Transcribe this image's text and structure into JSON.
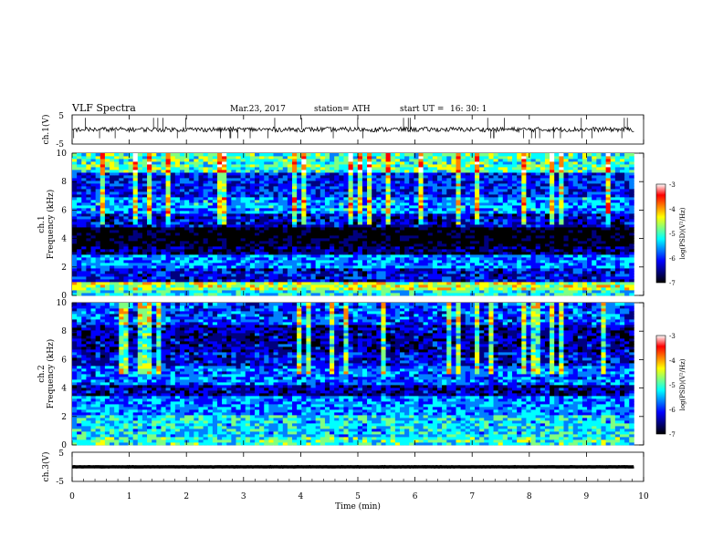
{
  "header": {
    "title": "VLF  Spectra",
    "date": "Mar.23, 2017",
    "station": "station= ATH",
    "start_ut_label": "start  UT  =",
    "start_ut_value": "16: 30: 1"
  },
  "chart_data": [
    {
      "type": "line",
      "panel": "ch1-waveform",
      "ylabel": "ch.1(V)",
      "yticks": [
        "5",
        "-5"
      ],
      "ylim": [
        -5,
        5
      ],
      "xlim": [
        0,
        10
      ],
      "baseline": 0,
      "color": "#000000"
    },
    {
      "type": "heatmap",
      "panel": "ch1-spectrogram",
      "ylabel_line1": "ch.1",
      "ylabel_line2": "Frequency  (kHz)",
      "yticks": [
        "0",
        "2",
        "4",
        "6",
        "8",
        "10"
      ],
      "ylim": [
        0,
        10
      ],
      "xlim": [
        0,
        9.83
      ],
      "colorbar": {
        "label": "log(PSD)(V²/Hz)",
        "ticks": [
          "-3",
          "-4",
          "-5",
          "-6",
          "-7"
        ],
        "range": [
          -7,
          -3
        ]
      },
      "bands_khz_mean_log_psd": [
        {
          "from": 0,
          "to": 0.4,
          "v": -5.2
        },
        {
          "from": 0.4,
          "to": 1,
          "v": -4.6
        },
        {
          "from": 1,
          "to": 2,
          "v": -6.1
        },
        {
          "from": 2,
          "to": 2.8,
          "v": -5.6
        },
        {
          "from": 2.8,
          "to": 3.5,
          "v": -6.5
        },
        {
          "from": 3.5,
          "to": 4.8,
          "v": -6.9
        },
        {
          "from": 4.8,
          "to": 5.8,
          "v": -6.2
        },
        {
          "from": 5.8,
          "to": 7,
          "v": -5.5
        },
        {
          "from": 7,
          "to": 8.7,
          "v": -6.0
        },
        {
          "from": 8.7,
          "to": 10,
          "v": -5.0
        }
      ]
    },
    {
      "type": "heatmap",
      "panel": "ch2-spectrogram",
      "ylabel_line1": "ch.2",
      "ylabel_line2": "Frequency  (kHz)",
      "yticks": [
        "0",
        "2",
        "4",
        "6",
        "8",
        "10"
      ],
      "ylim": [
        0,
        10
      ],
      "xlim": [
        0,
        9.83
      ],
      "colorbar": {
        "label": "log(PSD)(V²/Hz)",
        "ticks": [
          "-3",
          "-4",
          "-5",
          "-6",
          "-7"
        ],
        "range": [
          -7,
          -3
        ]
      },
      "bands_khz_mean_log_psd": [
        {
          "from": 0,
          "to": 0.5,
          "v": -5.0
        },
        {
          "from": 0.5,
          "to": 2.2,
          "v": -5.3
        },
        {
          "from": 2.2,
          "to": 3.5,
          "v": -5.6
        },
        {
          "from": 3.5,
          "to": 4.3,
          "v": -6.3
        },
        {
          "from": 4.3,
          "to": 5.5,
          "v": -5.7
        },
        {
          "from": 5.5,
          "to": 6.5,
          "v": -6.1
        },
        {
          "from": 6.5,
          "to": 8.5,
          "v": -6.3
        },
        {
          "from": 8.5,
          "to": 10,
          "v": -5.8
        }
      ]
    },
    {
      "type": "line",
      "panel": "ch3-waveform",
      "ylabel": "ch.3(V)",
      "yticks": [
        "5",
        "-5"
      ],
      "ylim": [
        -5,
        5
      ],
      "xlim": [
        0,
        10
      ],
      "baseline": 0,
      "color": "#000000"
    }
  ],
  "xaxis": {
    "label": "Time  (min)",
    "ticks": [
      "0",
      "1",
      "2",
      "3",
      "4",
      "5",
      "6",
      "7",
      "8",
      "9",
      "10"
    ],
    "range": [
      0,
      10
    ]
  },
  "colormap": [
    "#000000",
    "#00007f",
    "#0000ff",
    "#0080ff",
    "#00ffff",
    "#80ff80",
    "#ffff00",
    "#ff8000",
    "#ff0000",
    "#ffffff"
  ]
}
